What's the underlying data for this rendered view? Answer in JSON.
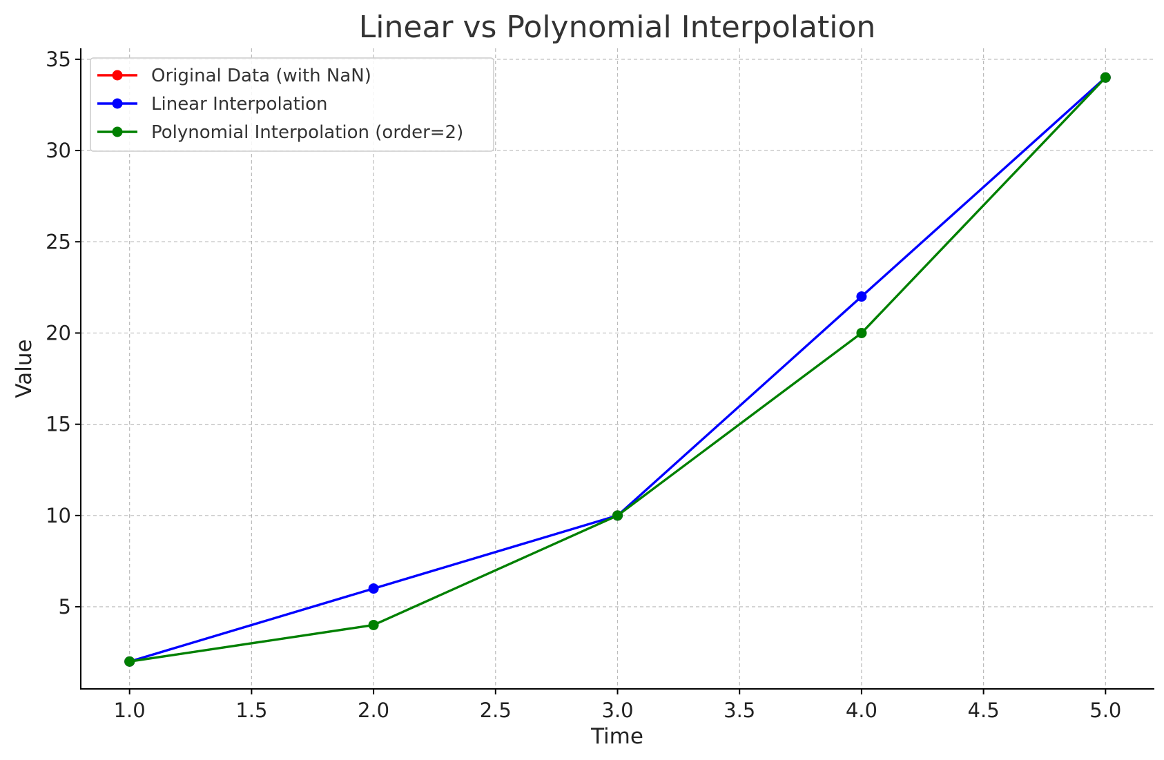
{
  "chart_data": {
    "type": "line",
    "title": "Linear vs Polynomial Interpolation",
    "xlabel": "Time",
    "ylabel": "Value",
    "xlim": [
      0.8,
      5.2
    ],
    "ylim": [
      0.5,
      35.6
    ],
    "x_ticks": [
      "1.0",
      "1.5",
      "2.0",
      "2.5",
      "3.0",
      "3.5",
      "4.0",
      "4.5",
      "5.0"
    ],
    "y_ticks": [
      "5",
      "10",
      "15",
      "20",
      "25",
      "30",
      "35"
    ],
    "grid": true,
    "legend_position": "top-left",
    "series": [
      {
        "name": "Original Data (with NaN)",
        "color": "#ff0000",
        "marker": "circle",
        "x": [
          1,
          3,
          5
        ],
        "y": [
          2,
          10,
          34
        ],
        "segments": [
          [
            0
          ],
          [
            1
          ],
          [
            2
          ]
        ]
      },
      {
        "name": "Linear Interpolation",
        "color": "#0000ff",
        "marker": "circle",
        "x": [
          1,
          2,
          3,
          4,
          5
        ],
        "y": [
          2,
          6,
          10,
          22,
          34
        ]
      },
      {
        "name": "Polynomial Interpolation (order=2)",
        "color": "#008000",
        "marker": "circle",
        "x": [
          1,
          2,
          3,
          4,
          5
        ],
        "y": [
          2,
          4,
          10,
          20,
          34
        ]
      }
    ]
  }
}
